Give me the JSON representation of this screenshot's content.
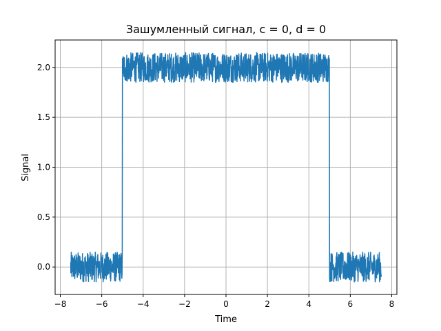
{
  "chart_data": {
    "type": "line",
    "title": "Зашумленный сигнал, c = 0, d = 0",
    "xlabel": "Time",
    "ylabel": "Signal",
    "xlim": [
      -8.25,
      8.25
    ],
    "ylim": [
      -0.275,
      2.275
    ],
    "grid": true,
    "x_ticks": [
      -8,
      -6,
      -4,
      -2,
      0,
      2,
      4,
      6,
      8
    ],
    "x_tick_labels": [
      "−8",
      "−6",
      "−4",
      "−2",
      "0",
      "2",
      "4",
      "6",
      "8"
    ],
    "y_ticks": [
      0.0,
      0.5,
      1.0,
      1.5,
      2.0
    ],
    "y_tick_labels": [
      "0.0",
      "0.5",
      "1.0",
      "1.5",
      "2.0"
    ],
    "series": [
      {
        "color": "#1f77b4",
        "x_range": [
          -7.5,
          7.5
        ],
        "segments": [
          {
            "x_start": -7.5,
            "x_end": -5.0,
            "base": 0.0,
            "noise_amplitude": 0.15
          },
          {
            "x_start": -5.0,
            "x_end": 5.0,
            "base": 2.0,
            "noise_amplitude": 0.15
          },
          {
            "x_start": 5.0,
            "x_end": 7.5,
            "base": 0.0,
            "noise_amplitude": 0.15
          }
        ]
      }
    ]
  }
}
